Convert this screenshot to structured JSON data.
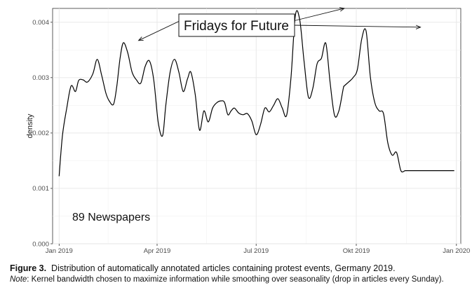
{
  "chart_data": {
    "type": "line",
    "ylabel": "density",
    "xlabel": "",
    "x_axis": {
      "ticks": [
        {
          "date": "2019-01-01",
          "label": "Jan 2019"
        },
        {
          "date": "2019-04-01",
          "label": "Apr 2019"
        },
        {
          "date": "2019-07-01",
          "label": "Jul 2019"
        },
        {
          "date": "2019-10-01",
          "label": "Okt 2019"
        },
        {
          "date": "2020-01-01",
          "label": "Jan 2020"
        }
      ],
      "range": [
        "2018-12-26",
        "2020-01-05"
      ]
    },
    "y_axis": {
      "ticks": [
        0.0,
        0.001,
        0.002,
        0.003,
        0.004
      ],
      "tick_labels": [
        "0.000",
        "0.001",
        "0.002",
        "0.003",
        "0.004"
      ],
      "range": [
        0,
        0.00425
      ]
    },
    "grid": true,
    "series": [
      {
        "x": [
          "2019-01-01",
          "2019-01-04",
          "2019-01-08",
          "2019-01-12",
          "2019-01-16",
          "2019-01-19",
          "2019-01-23",
          "2019-01-27",
          "2019-02-01",
          "2019-02-05",
          "2019-02-09",
          "2019-02-13",
          "2019-02-16",
          "2019-02-20",
          "2019-02-23",
          "2019-02-26",
          "2019-03-01",
          "2019-03-05",
          "2019-03-09",
          "2019-03-13",
          "2019-03-17",
          "2019-03-21",
          "2019-03-25",
          "2019-03-29",
          "2019-04-02",
          "2019-04-06",
          "2019-04-09",
          "2019-04-13",
          "2019-04-17",
          "2019-04-21",
          "2019-04-25",
          "2019-04-29",
          "2019-05-02",
          "2019-05-06",
          "2019-05-10",
          "2019-05-14",
          "2019-05-18",
          "2019-05-22",
          "2019-05-26",
          "2019-05-30",
          "2019-06-02",
          "2019-06-05",
          "2019-06-08",
          "2019-06-11",
          "2019-06-15",
          "2019-06-19",
          "2019-06-23",
          "2019-06-27",
          "2019-07-01",
          "2019-07-05",
          "2019-07-09",
          "2019-07-13",
          "2019-07-17",
          "2019-07-21",
          "2019-07-25",
          "2019-07-29",
          "2019-08-02",
          "2019-08-06",
          "2019-08-10",
          "2019-08-14",
          "2019-08-18",
          "2019-08-22",
          "2019-08-26",
          "2019-08-30",
          "2019-09-03",
          "2019-09-07",
          "2019-09-11",
          "2019-09-15",
          "2019-09-19",
          "2019-09-20",
          "2019-09-24",
          "2019-09-28",
          "2019-10-02",
          "2019-10-06",
          "2019-10-10",
          "2019-10-14",
          "2019-10-18",
          "2019-10-22",
          "2019-10-26",
          "2019-10-30",
          "2019-11-03",
          "2019-11-07",
          "2019-11-11",
          "2019-11-15",
          "2019-11-19",
          "2019-11-23",
          "2019-11-26",
          "2019-11-30",
          "2019-12-04",
          "2019-12-08",
          "2019-12-12",
          "2019-12-16",
          "2019-12-20",
          "2019-12-24",
          "2019-12-28",
          "2019-12-30"
        ],
        "y": [
          0.00122,
          0.00195,
          0.00245,
          0.00285,
          0.00275,
          0.00295,
          0.00296,
          0.00292,
          0.00307,
          0.00333,
          0.00305,
          0.00272,
          0.00258,
          0.00252,
          0.00285,
          0.00335,
          0.00363,
          0.00345,
          0.0031,
          0.00296,
          0.0029,
          0.0032,
          0.0033,
          0.00295,
          0.0022,
          0.00195,
          0.0025,
          0.0031,
          0.00333,
          0.0031,
          0.00275,
          0.00298,
          0.0031,
          0.0027,
          0.00205,
          0.0024,
          0.0022,
          0.00245,
          0.00255,
          0.00258,
          0.00255,
          0.00233,
          0.0024,
          0.00245,
          0.00236,
          0.00233,
          0.00235,
          0.00222,
          0.00197,
          0.00215,
          0.00245,
          0.00238,
          0.0025,
          0.00262,
          0.00245,
          0.00232,
          0.003,
          0.00412,
          0.00405,
          0.0033,
          0.00265,
          0.0028,
          0.00325,
          0.00335,
          0.00362,
          0.0029,
          0.00232,
          0.0024,
          0.0028,
          0.00285,
          0.00292,
          0.003,
          0.00315,
          0.0037,
          0.00384,
          0.003,
          0.00255,
          0.0024,
          0.00235,
          0.00182,
          0.0016,
          0.00165,
          0.00132,
          0.00132,
          0.00132,
          0.00132,
          0.00132,
          0.00132,
          0.00132,
          0.00132,
          0.00132,
          0.00132,
          0.00132,
          0.00132,
          0.00132,
          0.00132
        ]
      }
    ],
    "annotations": [
      {
        "text": "Fridays for Future",
        "arrow_targets": [
          {
            "date": "2019-03-15",
            "value": 0.00362
          },
          {
            "date": "2019-09-20",
            "value": 0.0042
          },
          {
            "date": "2019-11-29",
            "value": 0.00386
          }
        ]
      },
      {
        "text": "89 Newspapers"
      }
    ]
  },
  "caption": {
    "figure_label": "Figure 3.",
    "figure_text": "Distribution of automatically annotated articles containing protest events, Germany 2019.",
    "note_label": "Note",
    "note_text": ": Kernel bandwidth chosen to maximize information while smoothing over seasonality (drop in articles every Sunday)."
  }
}
